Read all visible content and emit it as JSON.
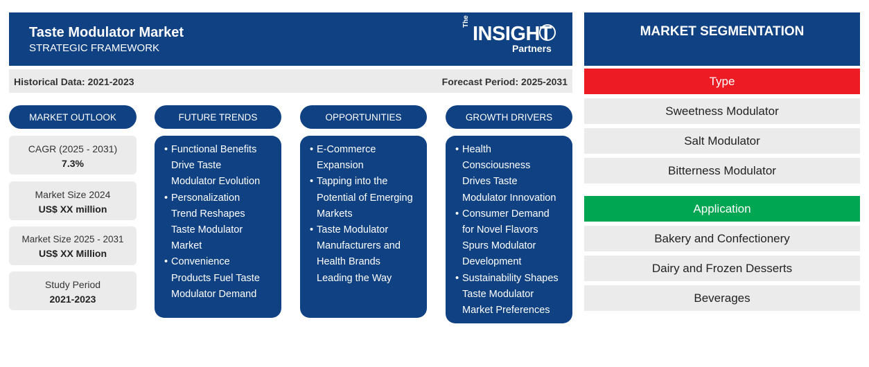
{
  "header": {
    "title": "Taste Modulator Market",
    "subtitle": "STRATEGIC FRAMEWORK",
    "logo": {
      "the": "The",
      "main": "INSIGHT",
      "sub": "Partners"
    }
  },
  "periods": {
    "historical": "Historical Data: 2021-2023",
    "forecast": "Forecast Period: 2025-2031"
  },
  "market_outlook": {
    "heading": "MARKET OUTLOOK",
    "stats": [
      {
        "label": "CAGR (2025 - 2031)",
        "value": "7.3%"
      },
      {
        "label": "Market Size 2024",
        "value": "US$ XX million"
      },
      {
        "label": "Market Size 2025 - 2031",
        "value": "US$ XX Million"
      },
      {
        "label": "Study Period",
        "value": "2021-2023"
      }
    ]
  },
  "future_trends": {
    "heading": "FUTURE TRENDS",
    "items": [
      [
        "Functional Benefits",
        "Drive Taste",
        "Modulator Evolution"
      ],
      [
        "Personalization",
        "Trend Reshapes",
        "Taste Modulator",
        "Market"
      ],
      [
        "Convenience",
        "Products Fuel Taste",
        "Modulator Demand"
      ]
    ]
  },
  "opportunities": {
    "heading": "OPPORTUNITIES",
    "items": [
      [
        "E-Commerce",
        "Expansion"
      ],
      [
        "Tapping into the",
        "Potential of Emerging",
        "Markets"
      ],
      [
        "Taste Modulator",
        "Manufacturers and",
        "Health Brands",
        "Leading the Way"
      ]
    ]
  },
  "growth_drivers": {
    "heading": "GROWTH DRIVERS",
    "items": [
      [
        "Health",
        "Consciousness",
        "Drives Taste",
        "Modulator Innovation"
      ],
      [
        "Consumer Demand",
        "for Novel Flavors",
        "Spurs Modulator",
        "Development"
      ],
      [
        "Sustainability Shapes",
        "Taste Modulator",
        "Market Preferences"
      ]
    ]
  },
  "segmentation": {
    "heading": "MARKET SEGMENTATION",
    "type": {
      "label": "Type",
      "color": "#ed1c24",
      "items": [
        "Sweetness Modulator",
        "Salt Modulator",
        "Bitterness Modulator"
      ]
    },
    "application": {
      "label": "Application",
      "color": "#00a651",
      "items": [
        "Bakery and Confectionery",
        "Dairy and Frozen Desserts",
        "Beverages"
      ]
    }
  }
}
